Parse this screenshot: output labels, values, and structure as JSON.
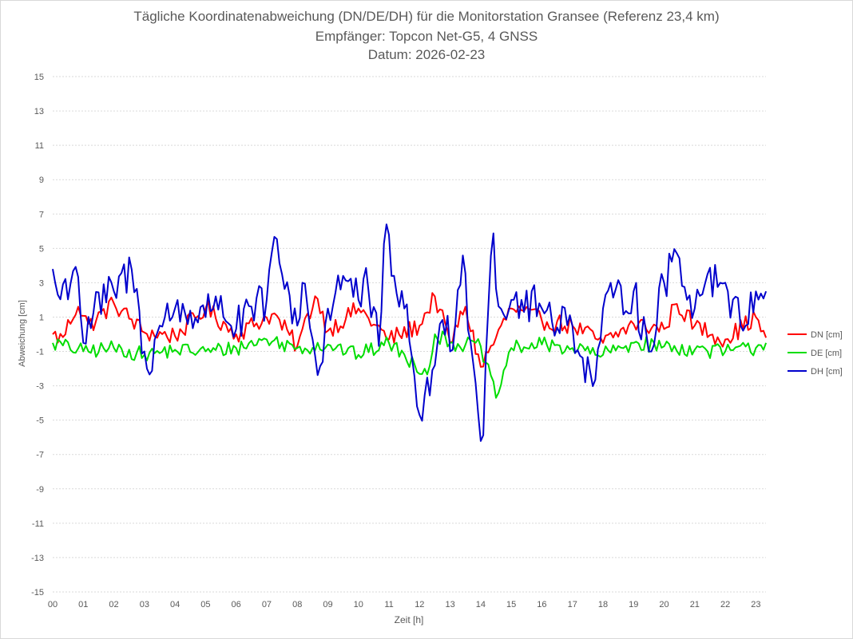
{
  "chart_data": {
    "type": "line",
    "title": "Tägliche Koordinatenabweichung (DN/DE/DH) für die Monitorstation Gransee (Referenz 23,4 km)",
    "subtitle": "Empfänger: Topcon Net-G5, 4 GNSS",
    "date_line": "Datum: 2026-02-23",
    "xlabel": "Zeit [h]",
    "ylabel": "Abweichung [cm]",
    "x_ticks": [
      "00",
      "01",
      "02",
      "03",
      "04",
      "05",
      "06",
      "07",
      "08",
      "09",
      "10",
      "11",
      "12",
      "13",
      "14",
      "15",
      "16",
      "17",
      "18",
      "19",
      "20",
      "21",
      "22",
      "23"
    ],
    "y_ticks": [
      "15",
      "13",
      "11",
      "9",
      "7",
      "5",
      "3",
      "1",
      "-1",
      "-3",
      "-5",
      "-7",
      "-9",
      "-11",
      "-13",
      "-15"
    ],
    "xlim": [
      0,
      23.33
    ],
    "ylim": [
      -15,
      15
    ],
    "grid": "horizontal dotted",
    "legend_position": "right",
    "samples_per_hour": 12,
    "series": [
      {
        "name": "DN [cm]",
        "color": "#ff0000",
        "keypoints": [
          [
            0,
            0
          ],
          [
            0.3,
            -0.3
          ],
          [
            0.8,
            1.7
          ],
          [
            1.2,
            0.5
          ],
          [
            2.0,
            1.8
          ],
          [
            3.0,
            0.1
          ],
          [
            4.0,
            -0.1
          ],
          [
            5.0,
            1.5
          ],
          [
            6.0,
            0.0
          ],
          [
            7.2,
            1.2
          ],
          [
            8.0,
            -0.7
          ],
          [
            8.6,
            2.3
          ],
          [
            9.0,
            0.2
          ],
          [
            10.0,
            1.5
          ],
          [
            11.0,
            -0.3
          ],
          [
            12.0,
            0.5
          ],
          [
            12.5,
            2.2
          ],
          [
            13.0,
            -0.5
          ],
          [
            13.5,
            1.6
          ],
          [
            14.0,
            -1.9
          ],
          [
            14.5,
            -0.2
          ],
          [
            15.0,
            1.5
          ],
          [
            16.0,
            0.8
          ],
          [
            17.0,
            0.5
          ],
          [
            18.0,
            -0.5
          ],
          [
            19.0,
            0.6
          ],
          [
            20.0,
            0.3
          ],
          [
            20.4,
            1.8
          ],
          [
            21.0,
            0.5
          ],
          [
            22.0,
            -0.3
          ],
          [
            23.0,
            1.0
          ],
          [
            23.3,
            -0.2
          ]
        ],
        "noise": 0.55
      },
      {
        "name": "DE [cm]",
        "color": "#00dd00",
        "keypoints": [
          [
            0,
            -0.5
          ],
          [
            1.0,
            -1.0
          ],
          [
            2.0,
            -0.8
          ],
          [
            3.0,
            -1.2
          ],
          [
            4.0,
            -0.9
          ],
          [
            5.0,
            -1.0
          ],
          [
            6.0,
            -0.8
          ],
          [
            7.0,
            -0.3
          ],
          [
            8.0,
            -0.8
          ],
          [
            9.0,
            -0.6
          ],
          [
            10.0,
            -1.2
          ],
          [
            11.0,
            -0.5
          ],
          [
            11.8,
            -1.7
          ],
          [
            12.3,
            -2.2
          ],
          [
            12.5,
            0.0
          ],
          [
            13.0,
            -0.5
          ],
          [
            14.0,
            -0.7
          ],
          [
            14.5,
            -3.7
          ],
          [
            15.0,
            -0.8
          ],
          [
            16.0,
            -0.6
          ],
          [
            17.0,
            -0.8
          ],
          [
            18.0,
            -1.2
          ],
          [
            19.0,
            -0.5
          ],
          [
            20.0,
            -0.7
          ],
          [
            21.0,
            -0.9
          ],
          [
            22.0,
            -1.0
          ],
          [
            23.0,
            -0.8
          ],
          [
            23.3,
            -0.5
          ]
        ],
        "noise": 0.45
      },
      {
        "name": "DH [cm]",
        "color": "#0000cc",
        "keypoints": [
          [
            0,
            3.8
          ],
          [
            0.2,
            2.0
          ],
          [
            0.7,
            3.8
          ],
          [
            0.8,
            4.1
          ],
          [
            1.0,
            -0.5
          ],
          [
            1.3,
            1.2
          ],
          [
            2.0,
            2.5
          ],
          [
            2.6,
            3.8
          ],
          [
            3.0,
            -1.0
          ],
          [
            3.1,
            -2.2
          ],
          [
            3.5,
            0.5
          ],
          [
            4.0,
            1.5
          ],
          [
            5.0,
            1.0
          ],
          [
            5.3,
            2.3
          ],
          [
            6.0,
            0.3
          ],
          [
            7.0,
            2.0
          ],
          [
            7.2,
            5.3
          ],
          [
            7.5,
            3.5
          ],
          [
            8.0,
            0.5
          ],
          [
            8.2,
            3.5
          ],
          [
            8.7,
            -2.8
          ],
          [
            9.0,
            1.5
          ],
          [
            9.5,
            3.4
          ],
          [
            10.0,
            2.0
          ],
          [
            10.3,
            2.8
          ],
          [
            10.7,
            -1.0
          ],
          [
            10.9,
            6.6
          ],
          [
            11.2,
            3.0
          ],
          [
            11.5,
            1.5
          ],
          [
            11.8,
            -2.0
          ],
          [
            12.0,
            -4.7
          ],
          [
            12.5,
            -1.8
          ],
          [
            12.9,
            1.5
          ],
          [
            13.0,
            -1.0
          ],
          [
            13.4,
            4.9
          ],
          [
            13.9,
            -4.5
          ],
          [
            14.1,
            -6.0
          ],
          [
            14.2,
            1.0
          ],
          [
            14.4,
            6.3
          ],
          [
            14.6,
            1.2
          ],
          [
            15.0,
            2.0
          ],
          [
            16.0,
            1.5
          ],
          [
            17.0,
            0.5
          ],
          [
            17.7,
            -3.2
          ],
          [
            18.0,
            1.5
          ],
          [
            19.0,
            2.5
          ],
          [
            19.5,
            -1.0
          ],
          [
            20.0,
            3.0
          ],
          [
            20.4,
            4.8
          ],
          [
            21.0,
            1.5
          ],
          [
            21.4,
            3.5
          ],
          [
            22.0,
            3.0
          ],
          [
            22.5,
            0.5
          ],
          [
            23.0,
            2.5
          ],
          [
            23.3,
            2.5
          ]
        ],
        "noise": 1.25
      }
    ]
  }
}
